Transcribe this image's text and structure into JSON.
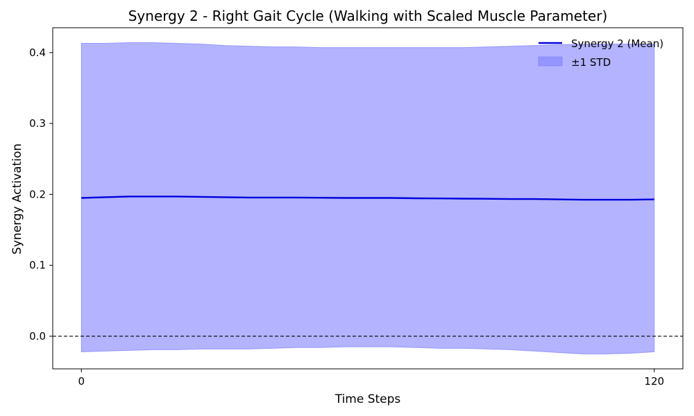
{
  "chart_data": {
    "type": "line",
    "title": "Synergy 2 - Right Gait Cycle (Walking with Scaled Muscle Parameter)",
    "xlabel": "Time Steps",
    "ylabel": "Synergy Activation",
    "xlim": [
      -6,
      126
    ],
    "ylim": [
      -0.046,
      0.435
    ],
    "xticks": [
      0,
      120
    ],
    "yticks": [
      0.0,
      0.1,
      0.2,
      0.3,
      0.4
    ],
    "ytick_labels": [
      "0.0",
      "0.1",
      "0.2",
      "0.3",
      "0.4"
    ],
    "grid": false,
    "legend_position": "top-right",
    "reference_line": {
      "y": 0.0,
      "style": "dashed",
      "color": "#000000"
    },
    "series": [
      {
        "name": "Synergy 2 (Mean)",
        "kind": "line",
        "color": "#0000dd",
        "x": [
          0,
          5,
          10,
          15,
          20,
          25,
          30,
          35,
          40,
          45,
          50,
          55,
          60,
          65,
          70,
          75,
          80,
          85,
          90,
          95,
          100,
          105,
          110,
          115,
          120
        ],
        "y": [
          0.195,
          0.196,
          0.197,
          0.197,
          0.197,
          0.1965,
          0.196,
          0.1955,
          0.1955,
          0.1955,
          0.1953,
          0.195,
          0.195,
          0.195,
          0.1945,
          0.1943,
          0.194,
          0.1938,
          0.1935,
          0.1935,
          0.193,
          0.1925,
          0.1925,
          0.1925,
          0.193
        ]
      },
      {
        "name": "±1 STD",
        "kind": "band",
        "color": "#8080ff",
        "x": [
          0,
          5,
          10,
          15,
          20,
          25,
          30,
          35,
          40,
          45,
          50,
          55,
          60,
          65,
          70,
          75,
          80,
          85,
          90,
          95,
          100,
          105,
          110,
          115,
          120
        ],
        "upper": [
          0.413,
          0.413,
          0.414,
          0.414,
          0.413,
          0.412,
          0.41,
          0.409,
          0.408,
          0.408,
          0.407,
          0.407,
          0.407,
          0.407,
          0.407,
          0.407,
          0.407,
          0.408,
          0.409,
          0.41,
          0.411,
          0.412,
          0.412,
          0.412,
          0.412
        ],
        "lower": [
          -0.022,
          -0.021,
          -0.02,
          -0.019,
          -0.019,
          -0.018,
          -0.018,
          -0.018,
          -0.017,
          -0.016,
          -0.016,
          -0.015,
          -0.015,
          -0.015,
          -0.016,
          -0.017,
          -0.017,
          -0.018,
          -0.019,
          -0.021,
          -0.023,
          -0.025,
          -0.025,
          -0.024,
          -0.022
        ]
      }
    ]
  }
}
